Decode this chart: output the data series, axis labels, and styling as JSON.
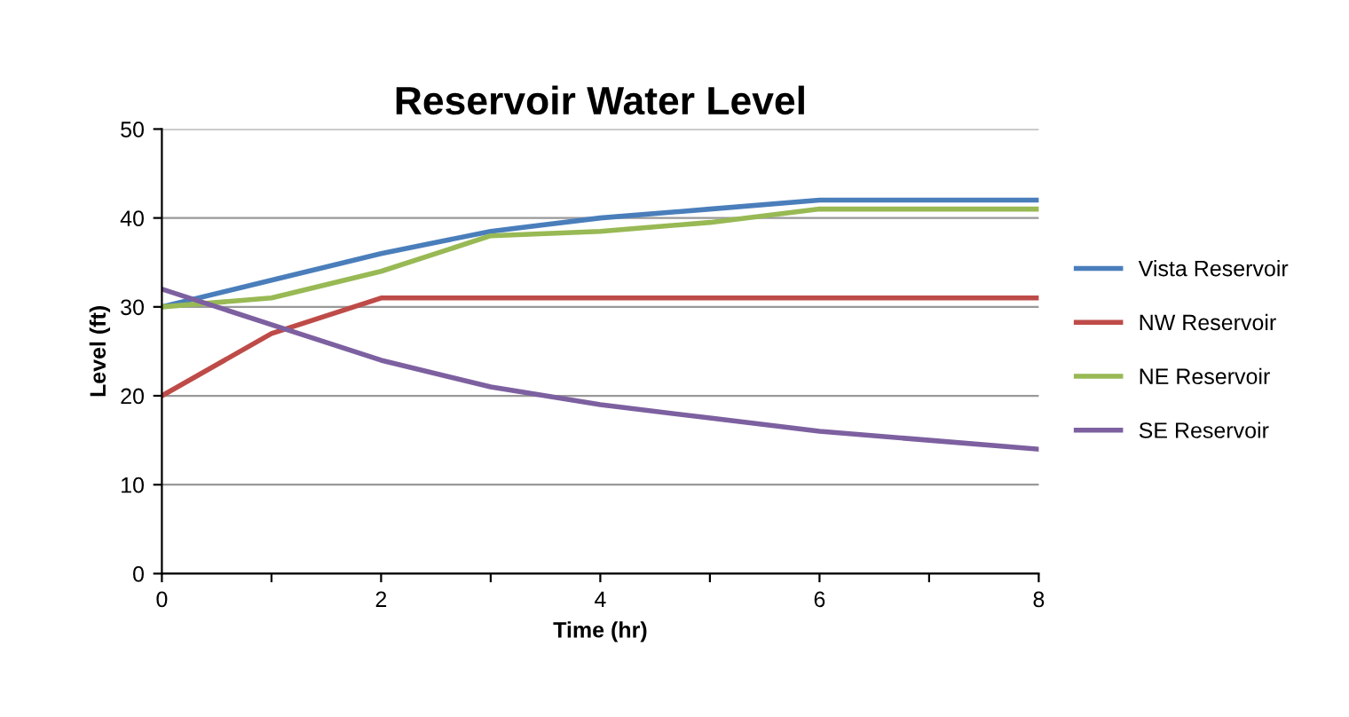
{
  "chart_data": {
    "type": "line",
    "title": "Reservoir Water Level",
    "xlabel": "Time (hr)",
    "ylabel": "Level (ft)",
    "x": [
      0,
      1,
      2,
      3,
      4,
      5,
      6,
      7,
      8
    ],
    "series": [
      {
        "name": "Vista Reservoir",
        "color": "#4a7ebb",
        "values": [
          30,
          33,
          36,
          38.5,
          40,
          41,
          42,
          42,
          42
        ]
      },
      {
        "name": "NW Reservoir",
        "color": "#be4b48",
        "values": [
          20,
          27,
          31,
          31,
          31,
          31,
          31,
          31,
          31
        ]
      },
      {
        "name": "NE Reservoir",
        "color": "#98b954",
        "values": [
          30,
          31,
          34,
          38,
          38.5,
          39.5,
          41,
          41,
          41
        ]
      },
      {
        "name": "SE Reservoir",
        "color": "#7d60a0",
        "values": [
          32,
          28,
          24,
          21,
          19,
          17.5,
          16,
          15,
          14
        ]
      }
    ],
    "xlim": [
      0,
      8
    ],
    "ylim": [
      0,
      50
    ],
    "xticks": [
      0,
      {
        "value": 1,
        "label": null
      },
      2,
      {
        "value": 3,
        "label": null
      },
      4,
      {
        "value": 5,
        "label": null
      },
      6,
      {
        "value": 7,
        "label": null
      },
      8
    ],
    "yticks": [
      0,
      10,
      20,
      30,
      40,
      50
    ],
    "grid": "y",
    "legend": "right",
    "marker": "none",
    "line_style": "solid"
  }
}
